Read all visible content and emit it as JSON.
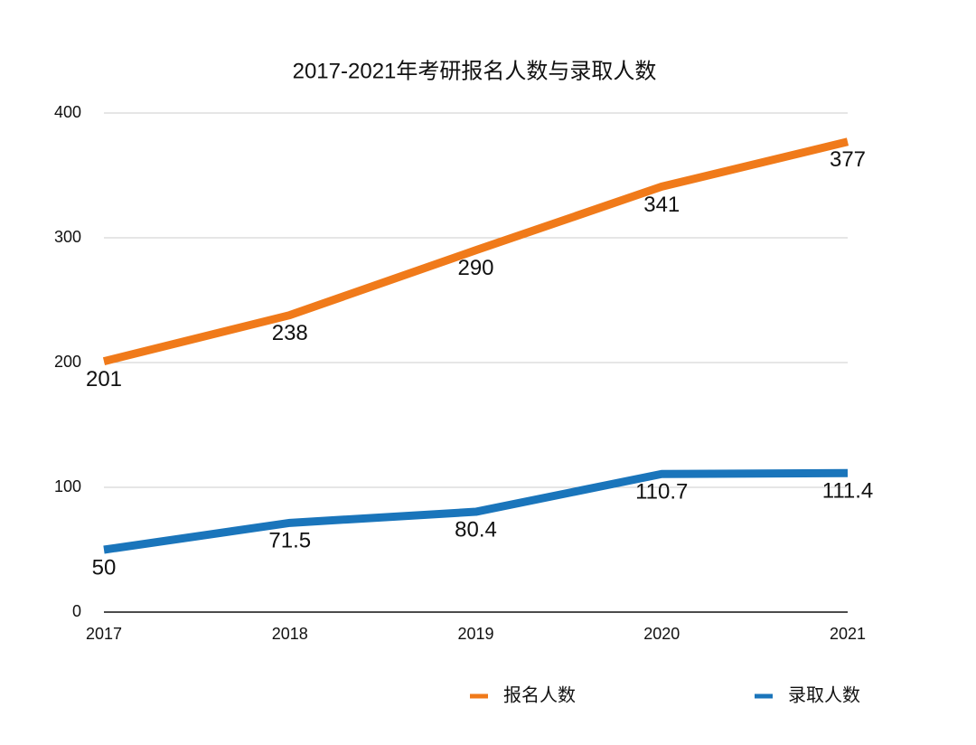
{
  "chart_data": {
    "type": "line",
    "title": "2017-2021年考研报名人数与录取人数",
    "categories": [
      "2017",
      "2018",
      "2019",
      "2020",
      "2021"
    ],
    "series": [
      {
        "name": "报名人数",
        "color": "#f07a1a",
        "values": [
          201,
          238,
          290,
          341,
          377
        ]
      },
      {
        "name": "录取人数",
        "color": "#1a75bb",
        "values": [
          50,
          71.5,
          80.4,
          110.7,
          111.4
        ]
      }
    ],
    "ylim": [
      0,
      400
    ],
    "yticks": [
      0,
      100,
      200,
      300,
      400
    ],
    "grid": true,
    "legend": "bottom"
  }
}
